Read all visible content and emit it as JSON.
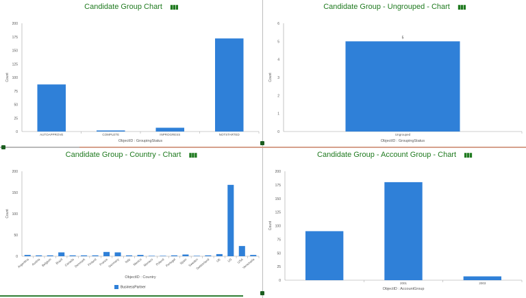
{
  "colors": {
    "bar": "#2f80d8",
    "title": "#1f7a1f",
    "axis": "#9e9e9e",
    "text": "#555555"
  },
  "charts": {
    "c1": {
      "title": "Candidate Group Chart"
    },
    "c2": {
      "title": "Candidate Group - Ungrouped - Chart"
    },
    "c3": {
      "title": "Candidate Group - Country - Chart"
    },
    "c4": {
      "title": "Candidate Group - Account Group - Chart"
    }
  },
  "chart_data": [
    {
      "type": "bar",
      "title": "Candidate Group Chart",
      "xlabel": "ObjectID : GroupingStatus",
      "ylabel": "Count",
      "categories": [
        "AUTOAPPROVE",
        "COMPLETE",
        "INPROGRESS",
        "NOTSTARTED"
      ],
      "values": [
        87,
        2,
        7,
        172
      ],
      "ylim": [
        0,
        200
      ],
      "yticks": [
        0,
        25,
        50,
        75,
        100,
        125,
        150,
        175,
        200
      ],
      "grid": false
    },
    {
      "type": "bar",
      "title": "Candidate Group - Ungrouped - Chart",
      "xlabel": "ObjectID : GroupingStatus",
      "ylabel": "Count",
      "categories": [
        "Ungrouped"
      ],
      "values": [
        5
      ],
      "data_labels": [
        "5"
      ],
      "ylim": [
        0,
        6
      ],
      "yticks": [
        0,
        1,
        2,
        3,
        4,
        5,
        6
      ],
      "grid": false
    },
    {
      "type": "bar",
      "title": "Candidate Group - Country - Chart",
      "xlabel": "ObjectID : Country",
      "ylabel": "Count",
      "categories": [
        "Argentina",
        "Austria",
        "Belgium",
        "Brazil",
        "Canada",
        "Denmark",
        "Finland",
        "France",
        "Germany",
        "Italy",
        "Mexico",
        "Monaco",
        "Poland",
        "Portugal",
        "Spain",
        "Sweden",
        "Switzerland",
        "UK",
        "US",
        "USA",
        "Venezuela"
      ],
      "series": [
        {
          "name": "BusinessPartner",
          "values": [
            3,
            2,
            2,
            9,
            2,
            2,
            2,
            10,
            9,
            2,
            3,
            1,
            1,
            2,
            4,
            1,
            2,
            5,
            168,
            24,
            3
          ]
        }
      ],
      "ylim": [
        0,
        200
      ],
      "yticks": [
        0,
        50,
        100,
        150,
        200
      ],
      "legend": "bottom",
      "grid": false
    },
    {
      "type": "bar",
      "title": "Candidate Group - Account Group - Chart",
      "xlabel": "ObjectID : AccountGroup",
      "ylabel": "Count",
      "categories": [
        "",
        "2001",
        "2003"
      ],
      "values": [
        90,
        180,
        7
      ],
      "ylim": [
        0,
        200
      ],
      "yticks": [
        0,
        25,
        50,
        75,
        100,
        125,
        150,
        175,
        200
      ],
      "grid": false
    }
  ]
}
